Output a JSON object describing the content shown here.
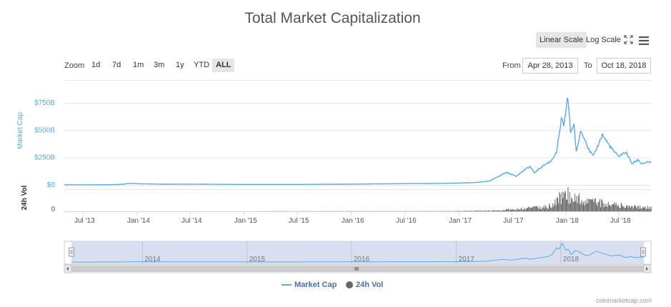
{
  "title": "Total Market Capitalization",
  "scale": {
    "linear_label": "Linear Scale",
    "log_label": "Log Scale",
    "active": "linear"
  },
  "toolbar_icons": [
    "fullscreen-icon",
    "menu-icon"
  ],
  "zoom": {
    "label": "Zoom",
    "options": [
      "1d",
      "7d",
      "1m",
      "3m",
      "1y",
      "YTD",
      "ALL"
    ],
    "active": "ALL"
  },
  "range": {
    "from_label": "From",
    "from_value": "Apr 28, 2013",
    "to_label": "To",
    "to_value": "Oct 18, 2018"
  },
  "legend": {
    "market_cap": "Market Cap",
    "volume": "24h Vol"
  },
  "credit": "coinmarketcap.com",
  "colors": {
    "market_cap": "#5da9dd",
    "volume": "#666666",
    "navigator_mask": "#d4dcef",
    "axis_title": "#5da9dd"
  },
  "chart_data": {
    "type": "line",
    "x_range": [
      "2013-04-28",
      "2018-10-18"
    ],
    "x_ticks": [
      "Jul '13",
      "Jan '14",
      "Jul '14",
      "Jan '15",
      "Jul '15",
      "Jan '16",
      "Jul '16",
      "Jan '17",
      "Jul '17",
      "Jan '18",
      "Jul '18"
    ],
    "y_axis": {
      "title": "Market Cap",
      "ticks": [
        "$0",
        "$250B",
        "$500B",
        "$750B"
      ],
      "range": [
        0,
        800
      ]
    },
    "vol_axis": {
      "title": "24h Vol",
      "ticks": [
        "0"
      ]
    },
    "navigator_ticks": [
      "2014",
      "2015",
      "2016",
      "2017",
      "2018"
    ],
    "series": [
      {
        "name": "Market Cap",
        "unit": "billion USD",
        "points": [
          [
            "2013-04-28",
            1.5
          ],
          [
            "2013-07-01",
            1.2
          ],
          [
            "2013-10-01",
            2.0
          ],
          [
            "2013-11-15",
            6.0
          ],
          [
            "2013-12-04",
            14.0
          ],
          [
            "2014-01-15",
            10.0
          ],
          [
            "2014-04-01",
            6.5
          ],
          [
            "2014-07-01",
            7.5
          ],
          [
            "2014-10-01",
            5.5
          ],
          [
            "2015-01-01",
            4.5
          ],
          [
            "2015-07-01",
            4.5
          ],
          [
            "2016-01-01",
            7.0
          ],
          [
            "2016-07-01",
            12.0
          ],
          [
            "2016-10-01",
            13.0
          ],
          [
            "2017-01-01",
            17.0
          ],
          [
            "2017-03-01",
            22.0
          ],
          [
            "2017-04-15",
            35.0
          ],
          [
            "2017-05-25",
            90.0
          ],
          [
            "2017-06-12",
            115.0
          ],
          [
            "2017-07-15",
            80.0
          ],
          [
            "2017-08-15",
            140.0
          ],
          [
            "2017-09-01",
            170.0
          ],
          [
            "2017-09-15",
            110.0
          ],
          [
            "2017-10-15",
            175.0
          ],
          [
            "2017-11-10",
            215.0
          ],
          [
            "2017-12-01",
            300.0
          ],
          [
            "2017-12-17",
            610.0
          ],
          [
            "2017-12-25",
            520.0
          ],
          [
            "2018-01-07",
            820.0
          ],
          [
            "2018-01-17",
            480.0
          ],
          [
            "2018-01-28",
            560.0
          ],
          [
            "2018-02-06",
            290.0
          ],
          [
            "2018-02-20",
            490.0
          ],
          [
            "2018-03-05",
            440.0
          ],
          [
            "2018-03-20",
            320.0
          ],
          [
            "2018-04-05",
            260.0
          ],
          [
            "2018-05-05",
            460.0
          ],
          [
            "2018-06-01",
            350.0
          ],
          [
            "2018-06-28",
            260.0
          ],
          [
            "2018-07-25",
            300.0
          ],
          [
            "2018-08-14",
            195.0
          ],
          [
            "2018-09-05",
            230.0
          ],
          [
            "2018-09-15",
            195.0
          ],
          [
            "2018-10-18",
            210.0
          ]
        ]
      },
      {
        "name": "24h Vol",
        "type": "column",
        "unit": "relative",
        "points": [
          [
            "2013-04-28",
            0.0
          ],
          [
            "2016-12-01",
            0.01
          ],
          [
            "2017-05-20",
            0.05
          ],
          [
            "2017-06-15",
            0.1
          ],
          [
            "2017-08-01",
            0.12
          ],
          [
            "2017-09-01",
            0.18
          ],
          [
            "2017-10-15",
            0.22
          ],
          [
            "2017-11-15",
            0.35
          ],
          [
            "2017-12-10",
            0.75
          ],
          [
            "2017-12-22",
            1.0
          ],
          [
            "2018-01-10",
            0.85
          ],
          [
            "2018-02-06",
            0.8
          ],
          [
            "2018-03-01",
            0.45
          ],
          [
            "2018-04-20",
            0.5
          ],
          [
            "2018-05-10",
            0.45
          ],
          [
            "2018-06-15",
            0.35
          ],
          [
            "2018-07-20",
            0.3
          ],
          [
            "2018-08-15",
            0.25
          ],
          [
            "2018-09-15",
            0.2
          ],
          [
            "2018-10-18",
            0.2
          ]
        ]
      }
    ]
  }
}
